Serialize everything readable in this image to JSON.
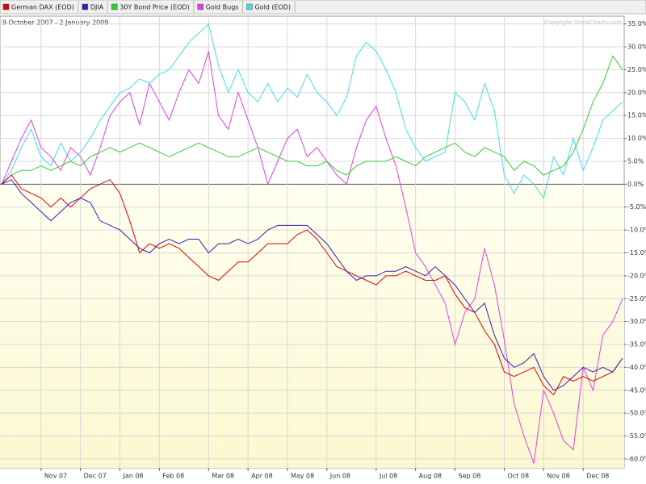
{
  "chart_data": {
    "type": "line",
    "subtitle": "9 October 2007 - 2 January 2009",
    "annotation": "Copyright StockCharts.com",
    "categories": [
      null,
      null,
      null,
      null,
      "Nov 07",
      null,
      null,
      null,
      "Dec 07",
      null,
      null,
      null,
      "Jan 08",
      null,
      null,
      null,
      "Feb 08",
      null,
      null,
      null,
      null,
      "Mar 08",
      null,
      null,
      null,
      "Apr 08",
      null,
      null,
      null,
      "May 08",
      null,
      null,
      null,
      "Jun 08",
      null,
      null,
      null,
      null,
      "Jul 08",
      null,
      null,
      null,
      "Aug 08",
      null,
      null,
      null,
      "Sep 08",
      null,
      null,
      null,
      null,
      "Oct 08",
      null,
      null,
      null,
      "Nov 08",
      null,
      null,
      null,
      "Dec 08",
      null,
      null,
      null,
      null
    ],
    "series": [
      {
        "name": "German DAX (EOD)",
        "color": "#e00000",
        "values": [
          0,
          2,
          -1,
          -2,
          -3,
          -5,
          -3,
          -5,
          -3,
          -1,
          0,
          1,
          -2,
          -8,
          -15,
          -13,
          -14,
          -13,
          -14,
          -16,
          -18,
          -20,
          -21,
          -19,
          -17,
          -17,
          -15,
          -13,
          -13,
          -13,
          -11,
          -10,
          -12,
          -15,
          -18,
          -19,
          -20,
          -21,
          -22,
          -20,
          -20,
          -19,
          -20,
          -21,
          -21,
          -20,
          -24,
          -27,
          -28,
          -32,
          -35,
          -41,
          -42,
          -41,
          -40,
          -44,
          -46,
          -42,
          -43,
          -42,
          -43,
          -42,
          -41,
          -38
        ]
      },
      {
        "name": "DJIA",
        "color": "#3a1db4",
        "values": [
          0,
          1,
          -2,
          -4,
          -6,
          -8,
          -6,
          -4,
          -3,
          -4,
          -8,
          -9,
          -10,
          -12,
          -14,
          -15,
          -13,
          -12,
          -13,
          -12,
          -12,
          -15,
          -13,
          -13,
          -12,
          -13,
          -12,
          -10,
          -9,
          -9,
          -9,
          -9,
          -11,
          -13,
          -16,
          -19,
          -21,
          -20,
          -20,
          -19,
          -19,
          -18,
          -19,
          -20,
          -18,
          -20,
          -22,
          -25,
          -28,
          -26,
          -33,
          -38,
          -40,
          -39,
          -37,
          -42,
          -45,
          -44,
          -42,
          -40,
          -41,
          -40,
          -41,
          -38
        ]
      },
      {
        "name": "30Y Bond Price (EOD)",
        "color": "#33cc33",
        "values": [
          0,
          2,
          3,
          3,
          4,
          3,
          4,
          5,
          4,
          6,
          7,
          8,
          7,
          8,
          9,
          8,
          7,
          6,
          7,
          8,
          9,
          8,
          7,
          6,
          6,
          7,
          8,
          7,
          6,
          5,
          5,
          4,
          4,
          5,
          3,
          2,
          4,
          5,
          5,
          5,
          6,
          5,
          4,
          6,
          7,
          8,
          9,
          7,
          6,
          8,
          7,
          6,
          3,
          5,
          4,
          2,
          3,
          4,
          7,
          12,
          18,
          22,
          28,
          25
        ]
      },
      {
        "name": "Gold Bugs",
        "color": "#e040e0",
        "values": [
          0,
          5,
          10,
          14,
          8,
          6,
          3,
          8,
          6,
          2,
          8,
          15,
          18,
          20,
          13,
          22,
          18,
          14,
          20,
          25,
          22,
          29,
          15,
          12,
          20,
          14,
          8,
          0,
          5,
          10,
          12,
          6,
          8,
          5,
          2,
          0,
          8,
          14,
          17,
          10,
          4,
          -5,
          -15,
          -18,
          -22,
          -26,
          -35,
          -28,
          -25,
          -14,
          -22,
          -34,
          -48,
          -55,
          -61,
          -45,
          -50,
          -56,
          -58,
          -40,
          -45,
          -33,
          -30,
          -25
        ]
      },
      {
        "name": "Gold (EOD)",
        "color": "#40dde8",
        "values": [
          0,
          3,
          8,
          12,
          6,
          4,
          9,
          5,
          7,
          10,
          14,
          17,
          20,
          21,
          23,
          22,
          24,
          25,
          28,
          31,
          33,
          35,
          26,
          20,
          25,
          20,
          18,
          22,
          18,
          21,
          19,
          24,
          20,
          18,
          15,
          19,
          28,
          31,
          29,
          25,
          20,
          12,
          8,
          5,
          6,
          7,
          20,
          18,
          14,
          22,
          16,
          2,
          -2,
          2,
          0,
          -3,
          6,
          2,
          10,
          3,
          8,
          14,
          16,
          18
        ]
      }
    ],
    "ylim": [
      -61.6,
      36
    ],
    "yticks": [
      {
        "value": 35,
        "label": "35.0%"
      },
      {
        "value": 30,
        "label": "30.0%"
      },
      {
        "value": 25,
        "label": "25.0%"
      },
      {
        "value": 20,
        "label": "20.0%"
      },
      {
        "value": 15,
        "label": "15.0%"
      },
      {
        "value": 10,
        "label": "10.0%"
      },
      {
        "value": 5,
        "label": "5.0%"
      },
      {
        "value": 0,
        "label": "0.0%"
      },
      {
        "value": -5,
        "label": "-5.0%"
      },
      {
        "value": -10,
        "label": "-10.0%"
      },
      {
        "value": -15,
        "label": "-15.0%"
      },
      {
        "value": -20,
        "label": "-20.0%"
      },
      {
        "value": -25,
        "label": "-25.0%"
      },
      {
        "value": -30,
        "label": "-30.0%"
      },
      {
        "value": -35,
        "label": "-35.0%"
      },
      {
        "value": -40,
        "label": "-40.0%"
      },
      {
        "value": -45,
        "label": "-45.0%"
      },
      {
        "value": -50,
        "label": "-50.0%"
      },
      {
        "value": -55,
        "label": "-55.0%"
      },
      {
        "value": -60,
        "label": "-60.0%"
      }
    ],
    "grid": true
  }
}
